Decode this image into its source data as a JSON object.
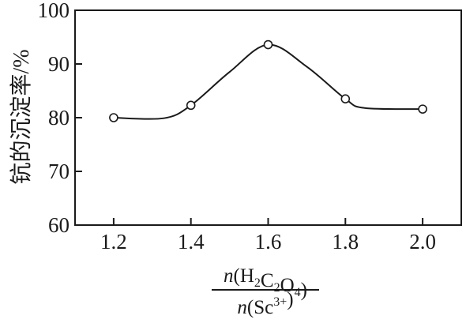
{
  "chart_data": {
    "type": "line",
    "title": "",
    "xlabel": {
      "numerator": "n(H2C2O4)",
      "denominator": "n(Sc3+)"
    },
    "ylabel": "钪的沉淀率/%",
    "xlim": [
      1.1,
      2.1
    ],
    "ylim": [
      60,
      100
    ],
    "x_ticks": [
      "1.2",
      "1.4",
      "1.6",
      "1.8",
      "2.0"
    ],
    "y_ticks": [
      "60",
      "70",
      "80",
      "90",
      "100"
    ],
    "grid": false,
    "marker": "open-circle",
    "series": [
      {
        "points": [
          {
            "x": 1.2,
            "y": 80.0
          },
          {
            "x": 1.4,
            "y": 82.3
          },
          {
            "x": 1.6,
            "y": 93.6
          },
          {
            "x": 1.8,
            "y": 83.5
          },
          {
            "x": 2.0,
            "y": 81.6
          }
        ]
      }
    ],
    "curve": [
      [
        1.2,
        80.0
      ],
      [
        1.33,
        79.9
      ],
      [
        1.4,
        82.3
      ],
      [
        1.5,
        88.5
      ],
      [
        1.6,
        93.6
      ],
      [
        1.7,
        89.5
      ],
      [
        1.8,
        83.5
      ],
      [
        1.85,
        81.8
      ],
      [
        2.0,
        81.6
      ]
    ],
    "colors": {
      "line": "#1a1a1a",
      "marker_fill": "#ffffff",
      "text": "#1a1a1a"
    }
  }
}
